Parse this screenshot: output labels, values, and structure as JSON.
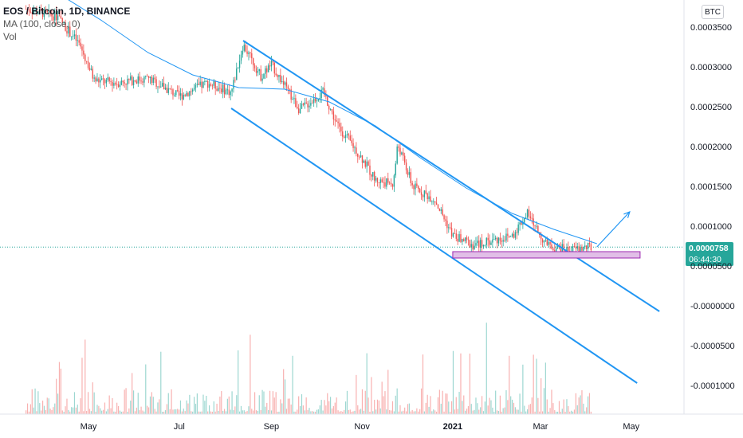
{
  "header": {
    "symbol": "EOS / Bitcoin, 1D, BINANCE",
    "ma_label": "MA (100, close, 0)",
    "vol_label": "Vol"
  },
  "currency_button": "BTC",
  "current": {
    "price": "0.0000758",
    "countdown": "06:44:30",
    "color": "#26a69a"
  },
  "colors": {
    "up": "#26a69a",
    "down": "#ef5350",
    "channel": "#2196f3",
    "ma": "#2196f3",
    "zone": "#e1bee7"
  },
  "chart_data": {
    "type": "candlestick",
    "x_labels": [
      "May",
      "Jul",
      "Sep",
      "Nov",
      "2021",
      "Mar",
      "May"
    ],
    "y_labels": [
      "0.0003500",
      "0.0003000",
      "0.0002500",
      "0.0002000",
      "0.0001500",
      "0.0001000",
      "0.0000500",
      "-0.0000000",
      "-0.0000500",
      "-0.0001000"
    ],
    "ylim": [
      -0.00013,
      0.00039
    ],
    "price_path": [
      [
        "2020-03-20",
        0.000375
      ],
      [
        "2020-04-10",
        0.000365
      ],
      [
        "2020-04-25",
        0.00033
      ],
      [
        "2020-05-05",
        0.000285
      ],
      [
        "2020-05-20",
        0.000282
      ],
      [
        "2020-06-10",
        0.000288
      ],
      [
        "2020-07-01",
        0.000265
      ],
      [
        "2020-07-20",
        0.000282
      ],
      [
        "2020-08-05",
        0.00027
      ],
      [
        "2020-08-13",
        0.00033
      ],
      [
        "2020-08-25",
        0.00029
      ],
      [
        "2020-09-01",
        0.000305
      ],
      [
        "2020-09-20",
        0.000248
      ],
      [
        "2020-10-06",
        0.00027
      ],
      [
        "2020-10-15",
        0.00023
      ],
      [
        "2020-10-31",
        0.00019
      ],
      [
        "2020-11-10",
        0.00016
      ],
      [
        "2020-11-22",
        0.000155
      ],
      [
        "2020-11-25",
        0.000205
      ],
      [
        "2020-12-05",
        0.000152
      ],
      [
        "2020-12-20",
        0.000135
      ],
      [
        "2021-01-01",
        9e-05
      ],
      [
        "2021-01-15",
        7.8e-05
      ],
      [
        "2021-02-10",
        9e-05
      ],
      [
        "2021-02-20",
        0.000118
      ],
      [
        "2021-03-05",
        7.8e-05
      ],
      [
        "2021-03-20",
        7.2e-05
      ],
      [
        "2021-04-05",
        7.6e-05
      ]
    ],
    "ma_100": [
      [
        "2020-04-10",
        0.000395
      ],
      [
        "2020-05-10",
        0.00036
      ],
      [
        "2020-06-10",
        0.00032
      ],
      [
        "2020-07-10",
        0.000292
      ],
      [
        "2020-08-10",
        0.000276
      ],
      [
        "2020-09-10",
        0.000274
      ],
      [
        "2020-10-10",
        0.000258
      ],
      [
        "2020-11-10",
        0.000228
      ],
      [
        "2020-12-10",
        0.000188
      ],
      [
        "2021-01-10",
        0.00015
      ],
      [
        "2021-02-10",
        0.000118
      ],
      [
        "2021-03-10",
        9.8e-05
      ],
      [
        "2021-04-08",
        8e-05
      ]
    ],
    "channel_upper": [
      [
        "2020-08-13",
        0.000335
      ],
      [
        "2021-05-20",
        -5e-06
      ]
    ],
    "channel_lower": [
      [
        "2020-08-05",
        0.00025
      ],
      [
        "2021-05-05",
        -9.5e-05
      ]
    ],
    "support_zone": {
      "from": "2021-01-01",
      "to": "2021-05-07",
      "top": 7e-05,
      "bottom": 6.2e-05
    },
    "projection": [
      [
        "2021-04-08",
        7.6e-05
      ],
      [
        "2021-04-30",
        0.00012
      ]
    ],
    "current_price": 7.58e-05,
    "grid": false,
    "legend_position": "top-left"
  }
}
